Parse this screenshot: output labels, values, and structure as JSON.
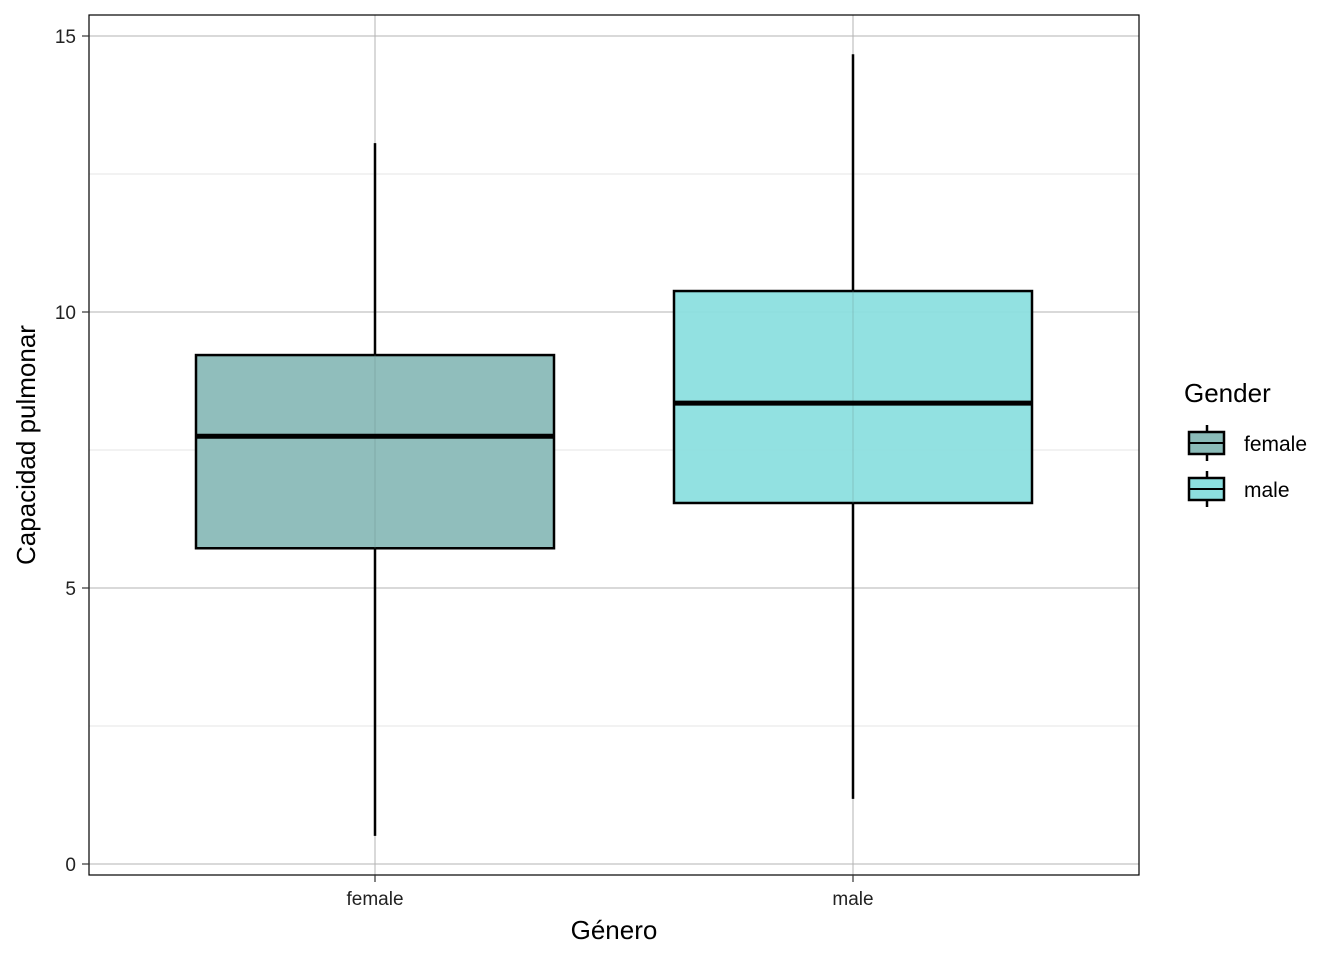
{
  "chart_data": {
    "type": "box",
    "title": "",
    "xlabel": "Género",
    "ylabel": "Capacidad pulmonar",
    "ylim": [
      -0.3,
      15.55
    ],
    "yticks": [
      0,
      5,
      10,
      15
    ],
    "ytick_labels": [
      "0",
      "5",
      "10",
      "15"
    ],
    "grid": true,
    "categories": [
      "female",
      "male"
    ],
    "series": [
      {
        "name": "female",
        "color": "#8ABBB8",
        "min": 0.51,
        "q1": 5.72,
        "median": 7.75,
        "q3": 9.22,
        "max": 13.06
      },
      {
        "name": "male",
        "color": "#8CDFDF",
        "min": 1.18,
        "q1": 6.54,
        "median": 8.35,
        "q3": 10.38,
        "max": 14.67
      }
    ],
    "legend": {
      "title": "Gender",
      "placement": "right",
      "entries": [
        "female",
        "male"
      ]
    }
  }
}
